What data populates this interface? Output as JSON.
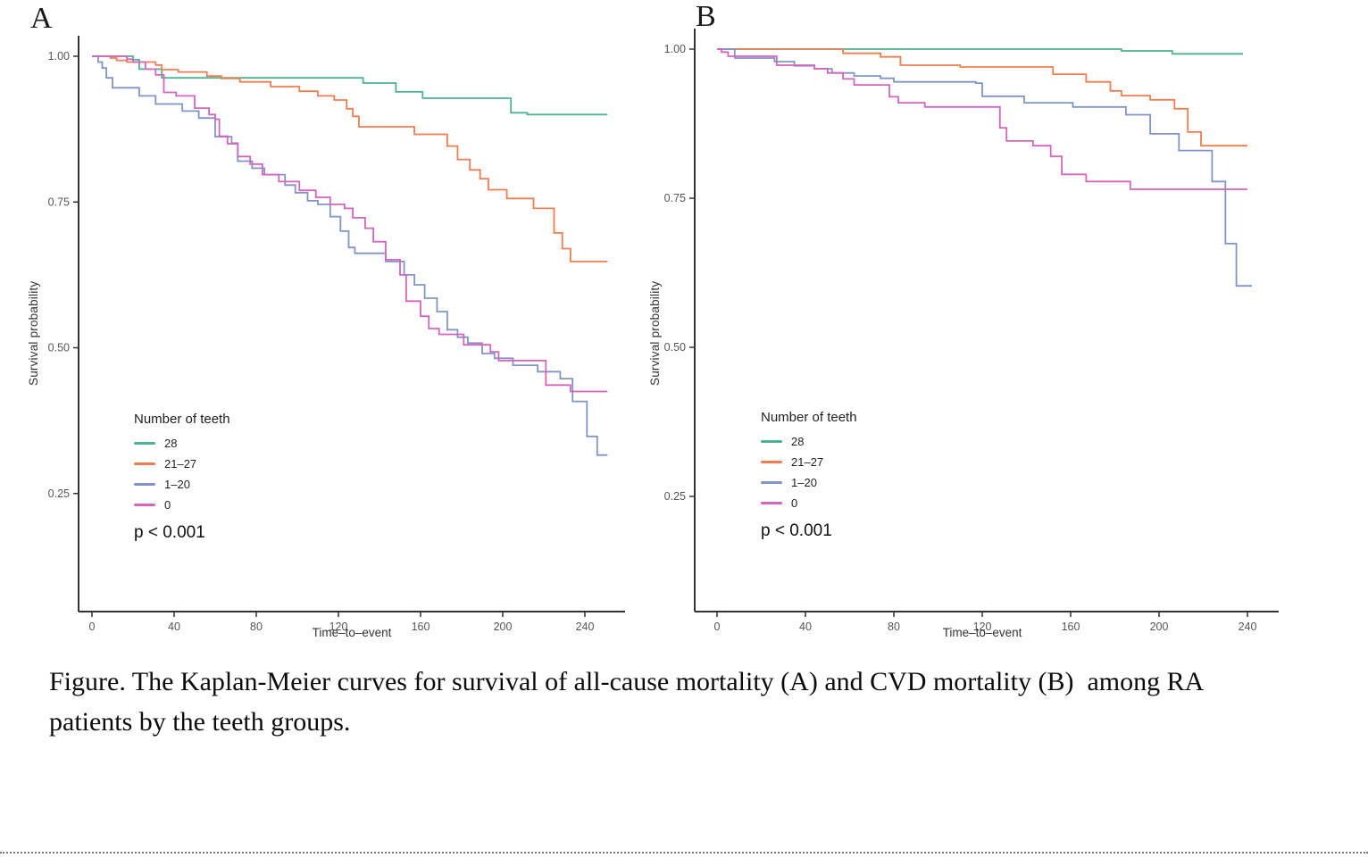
{
  "caption": {
    "line1": "Figure. The Kaplan-Meier curves for survival of all-cause mortality (A) and CVD mortality (B)  among RA",
    "line2": "patients by the teeth groups."
  },
  "colors": {
    "teeth_28": "#4DB292",
    "teeth_21_27": "#EE7E50",
    "teeth_1_20": "#8294C7",
    "teeth_0": "#D365BD",
    "axis": "#333333",
    "tick_label": "#555555"
  },
  "chart_data": [
    {
      "id": "A",
      "type": "line",
      "subtype": "kaplan-meier-step",
      "panel_label": "A",
      "title": "",
      "xlabel": "Time–to–event",
      "ylabel": "Survival probability",
      "x_ticks": [
        0,
        40,
        80,
        120,
        160,
        200,
        240
      ],
      "y_ticks": [
        1.0,
        0.75,
        0.5,
        0.25
      ],
      "y_tick_labels": [
        "1.00",
        "0.75",
        "0.50",
        "0.25"
      ],
      "xlim": [
        0,
        251
      ],
      "ylim": [
        0.05,
        1.0
      ],
      "grid": false,
      "legend_position": "inside-lower-left",
      "legend_title": "Number of teeth",
      "p_value": "p < 0.001",
      "series": [
        {
          "name": "28",
          "color": "#4DB292",
          "steps": [
            [
              0,
              1.0
            ],
            [
              20,
              0.994
            ],
            [
              23,
              0.978
            ],
            [
              34,
              0.963
            ],
            [
              132,
              0.954
            ],
            [
              148,
              0.939
            ],
            [
              161,
              0.928
            ],
            [
              204,
              0.903
            ],
            [
              212,
              0.9
            ],
            [
              251,
              0.9
            ]
          ]
        },
        {
          "name": "21–27",
          "color": "#EE7E50",
          "steps": [
            [
              0,
              1.0
            ],
            [
              9,
              0.997
            ],
            [
              12,
              0.993
            ],
            [
              17,
              0.99
            ],
            [
              31,
              0.985
            ],
            [
              34,
              0.977
            ],
            [
              42,
              0.973
            ],
            [
              56,
              0.966
            ],
            [
              63,
              0.962
            ],
            [
              72,
              0.956
            ],
            [
              87,
              0.948
            ],
            [
              101,
              0.94
            ],
            [
              110,
              0.932
            ],
            [
              118,
              0.925
            ],
            [
              124,
              0.91
            ],
            [
              127,
              0.897
            ],
            [
              130,
              0.879
            ],
            [
              157,
              0.866
            ],
            [
              173,
              0.846
            ],
            [
              178,
              0.823
            ],
            [
              184,
              0.805
            ],
            [
              189,
              0.79
            ],
            [
              193,
              0.771
            ],
            [
              202,
              0.756
            ],
            [
              215,
              0.739
            ],
            [
              225,
              0.697
            ],
            [
              229,
              0.67
            ],
            [
              233,
              0.648
            ],
            [
              251,
              0.648
            ]
          ]
        },
        {
          "name": "1–20",
          "color": "#8294C7",
          "steps": [
            [
              0,
              1.0
            ],
            [
              3,
              0.99
            ],
            [
              5,
              0.98
            ],
            [
              7,
              0.963
            ],
            [
              10,
              0.946
            ],
            [
              23,
              0.932
            ],
            [
              31,
              0.918
            ],
            [
              44,
              0.906
            ],
            [
              52,
              0.894
            ],
            [
              60,
              0.862
            ],
            [
              68,
              0.851
            ],
            [
              71,
              0.82
            ],
            [
              78,
              0.808
            ],
            [
              84,
              0.797
            ],
            [
              94,
              0.779
            ],
            [
              99,
              0.766
            ],
            [
              105,
              0.752
            ],
            [
              110,
              0.746
            ],
            [
              116,
              0.725
            ],
            [
              121,
              0.7
            ],
            [
              125,
              0.672
            ],
            [
              128,
              0.662
            ],
            [
              143,
              0.648
            ],
            [
              152,
              0.625
            ],
            [
              157,
              0.608
            ],
            [
              162,
              0.585
            ],
            [
              168,
              0.562
            ],
            [
              173,
              0.531
            ],
            [
              178,
              0.518
            ],
            [
              183,
              0.508
            ],
            [
              190,
              0.49
            ],
            [
              196,
              0.482
            ],
            [
              205,
              0.47
            ],
            [
              217,
              0.459
            ],
            [
              228,
              0.447
            ],
            [
              234,
              0.408
            ],
            [
              241,
              0.348
            ],
            [
              246,
              0.316
            ],
            [
              251,
              0.316
            ]
          ]
        },
        {
          "name": "0",
          "color": "#D365BD",
          "steps": [
            [
              0,
              1.0
            ],
            [
              17,
              0.995
            ],
            [
              20,
              0.99
            ],
            [
              26,
              0.978
            ],
            [
              31,
              0.968
            ],
            [
              35,
              0.938
            ],
            [
              41,
              0.932
            ],
            [
              50,
              0.911
            ],
            [
              57,
              0.9
            ],
            [
              60,
              0.892
            ],
            [
              62,
              0.863
            ],
            [
              66,
              0.85
            ],
            [
              71,
              0.828
            ],
            [
              77,
              0.815
            ],
            [
              83,
              0.797
            ],
            [
              91,
              0.785
            ],
            [
              101,
              0.77
            ],
            [
              109,
              0.758
            ],
            [
              116,
              0.746
            ],
            [
              123,
              0.739
            ],
            [
              127,
              0.723
            ],
            [
              133,
              0.705
            ],
            [
              137,
              0.682
            ],
            [
              143,
              0.651
            ],
            [
              150,
              0.625
            ],
            [
              153,
              0.58
            ],
            [
              160,
              0.554
            ],
            [
              164,
              0.533
            ],
            [
              169,
              0.523
            ],
            [
              181,
              0.505
            ],
            [
              194,
              0.493
            ],
            [
              198,
              0.478
            ],
            [
              221,
              0.436
            ],
            [
              233,
              0.425
            ],
            [
              251,
              0.425
            ]
          ]
        }
      ]
    },
    {
      "id": "B",
      "type": "line",
      "subtype": "kaplan-meier-step",
      "panel_label": "B",
      "title": "",
      "xlabel": "Time–to–event",
      "ylabel": "Survival probability",
      "x_ticks": [
        0,
        40,
        80,
        120,
        160,
        200,
        240
      ],
      "y_ticks": [
        1.0,
        0.75,
        0.5,
        0.25
      ],
      "y_tick_labels": [
        "1.00",
        "0.75",
        "0.50",
        "0.25"
      ],
      "xlim": [
        0,
        242
      ],
      "ylim": [
        0.05,
        1.0
      ],
      "grid": false,
      "legend_position": "inside-lower-left",
      "legend_title": "Number of teeth",
      "p_value": "p < 0.001",
      "series": [
        {
          "name": "28",
          "color": "#4DB292",
          "steps": [
            [
              0,
              1.0
            ],
            [
              180,
              1.0
            ],
            [
              183,
              0.997
            ],
            [
              206,
              0.992
            ],
            [
              238,
              0.992
            ]
          ]
        },
        {
          "name": "21–27",
          "color": "#EE7E50",
          "steps": [
            [
              0,
              1.0
            ],
            [
              55,
              1.0
            ],
            [
              57,
              0.993
            ],
            [
              74,
              0.987
            ],
            [
              83,
              0.973
            ],
            [
              110,
              0.97
            ],
            [
              152,
              0.958
            ],
            [
              167,
              0.945
            ],
            [
              178,
              0.93
            ],
            [
              183,
              0.922
            ],
            [
              196,
              0.915
            ],
            [
              207,
              0.9
            ],
            [
              213,
              0.861
            ],
            [
              219,
              0.838
            ],
            [
              240,
              0.838
            ]
          ]
        },
        {
          "name": "1–20",
          "color": "#8294C7",
          "steps": [
            [
              0,
              1.0
            ],
            [
              8,
              0.985
            ],
            [
              26,
              0.979
            ],
            [
              35,
              0.972
            ],
            [
              44,
              0.967
            ],
            [
              52,
              0.96
            ],
            [
              62,
              0.955
            ],
            [
              74,
              0.951
            ],
            [
              80,
              0.945
            ],
            [
              117,
              0.943
            ],
            [
              120,
              0.921
            ],
            [
              139,
              0.91
            ],
            [
              161,
              0.903
            ],
            [
              185,
              0.89
            ],
            [
              196,
              0.858
            ],
            [
              209,
              0.83
            ],
            [
              224,
              0.778
            ],
            [
              230,
              0.674
            ],
            [
              235,
              0.603
            ],
            [
              242,
              0.603
            ]
          ]
        },
        {
          "name": "0",
          "color": "#D365BD",
          "steps": [
            [
              0,
              1.0
            ],
            [
              2,
              0.995
            ],
            [
              5,
              0.988
            ],
            [
              27,
              0.973
            ],
            [
              44,
              0.967
            ],
            [
              50,
              0.96
            ],
            [
              57,
              0.95
            ],
            [
              62,
              0.94
            ],
            [
              78,
              0.92
            ],
            [
              82,
              0.91
            ],
            [
              94,
              0.903
            ],
            [
              128,
              0.868
            ],
            [
              131,
              0.846
            ],
            [
              143,
              0.838
            ],
            [
              151,
              0.82
            ],
            [
              156,
              0.79
            ],
            [
              167,
              0.778
            ],
            [
              187,
              0.765
            ],
            [
              240,
              0.765
            ]
          ]
        }
      ]
    }
  ]
}
